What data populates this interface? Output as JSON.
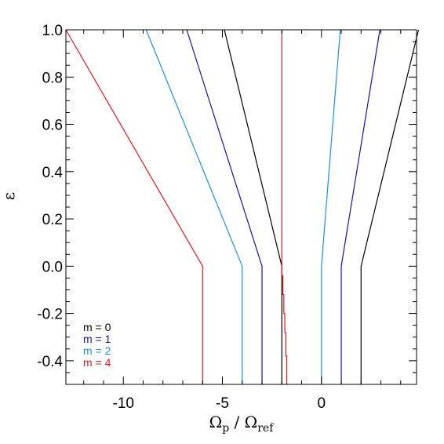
{
  "chart_data": {
    "type": "line",
    "title": "",
    "xlabel": "Ω_p / Ω_ref",
    "xlabel_main": "Ω",
    "xlabel_sub1": "p",
    "xlabel_sep": " / Ω",
    "xlabel_sub2": "ref",
    "ylabel": "ε",
    "xlim": [
      -12.9,
      4.8
    ],
    "ylim": [
      -0.5,
      1.0
    ],
    "x_ticks": [
      {
        "value": -10,
        "label": "-10"
      },
      {
        "value": -5,
        "label": "-5"
      },
      {
        "value": 0,
        "label": "0"
      }
    ],
    "y_ticks": [
      {
        "value": 1.0,
        "label": "1.0"
      },
      {
        "value": 0.8,
        "label": "0.8"
      },
      {
        "value": 0.6,
        "label": "0.6"
      },
      {
        "value": 0.4,
        "label": "0.4"
      },
      {
        "value": 0.2,
        "label": "0.2"
      },
      {
        "value": 0.0,
        "label": "0.0"
      },
      {
        "value": -0.2,
        "label": "-0.2"
      },
      {
        "value": -0.4,
        "label": "-0.4"
      }
    ],
    "grid": false,
    "legend_position": "bottom-left",
    "legend": [
      {
        "label": "m = 0",
        "color": "#000000"
      },
      {
        "label": "m = 1",
        "color": "#1a0fa8"
      },
      {
        "label": "m = 2",
        "color": "#1e8fe8"
      },
      {
        "label": "m = 4",
        "color": "#e8161c"
      }
    ],
    "series": [
      {
        "group": "m = 0",
        "color": "#000000",
        "points": [
          [
            -2.0,
            -0.5
          ],
          [
            -2.0,
            0.0
          ],
          [
            -4.9,
            1.0
          ]
        ]
      },
      {
        "group": "m = 0",
        "color": "#000000",
        "points": [
          [
            2.0,
            -0.5
          ],
          [
            2.0,
            0.0
          ],
          [
            4.9,
            1.0
          ]
        ]
      },
      {
        "group": "m = 1",
        "color": "#1a0fa8",
        "points": [
          [
            -3.0,
            -0.5
          ],
          [
            -3.0,
            0.0
          ],
          [
            -6.8,
            1.0
          ]
        ]
      },
      {
        "group": "m = 1",
        "color": "#1a0fa8",
        "points": [
          [
            1.0,
            -0.5
          ],
          [
            1.0,
            0.0
          ],
          [
            2.95,
            1.0
          ]
        ]
      },
      {
        "group": "m = 2",
        "color": "#1e8fe8",
        "points": [
          [
            -4.0,
            -0.5
          ],
          [
            -4.0,
            0.0
          ],
          [
            -8.85,
            1.0
          ]
        ]
      },
      {
        "group": "m = 2",
        "color": "#1e8fe8",
        "points": [
          [
            0.0,
            -0.5
          ],
          [
            0.0,
            0.0
          ],
          [
            0.95,
            1.0
          ]
        ]
      },
      {
        "group": "m = 4",
        "color": "#e8161c",
        "points": [
          [
            -6.0,
            -0.5
          ],
          [
            -6.0,
            0.0
          ],
          [
            -12.9,
            1.0
          ]
        ]
      },
      {
        "group": "m = 4",
        "color": "#e8161c",
        "points": [
          [
            -1.75,
            -0.5
          ],
          [
            -1.75,
            -0.38
          ],
          [
            -1.8,
            -0.38
          ],
          [
            -1.8,
            -0.28
          ],
          [
            -1.85,
            -0.28
          ],
          [
            -1.85,
            -0.2
          ],
          [
            -1.9,
            -0.2
          ],
          [
            -1.9,
            -0.12
          ],
          [
            -1.95,
            -0.12
          ],
          [
            -1.95,
            -0.04
          ],
          [
            -2.0,
            -0.04
          ],
          [
            -2.0,
            1.0
          ]
        ]
      }
    ]
  }
}
